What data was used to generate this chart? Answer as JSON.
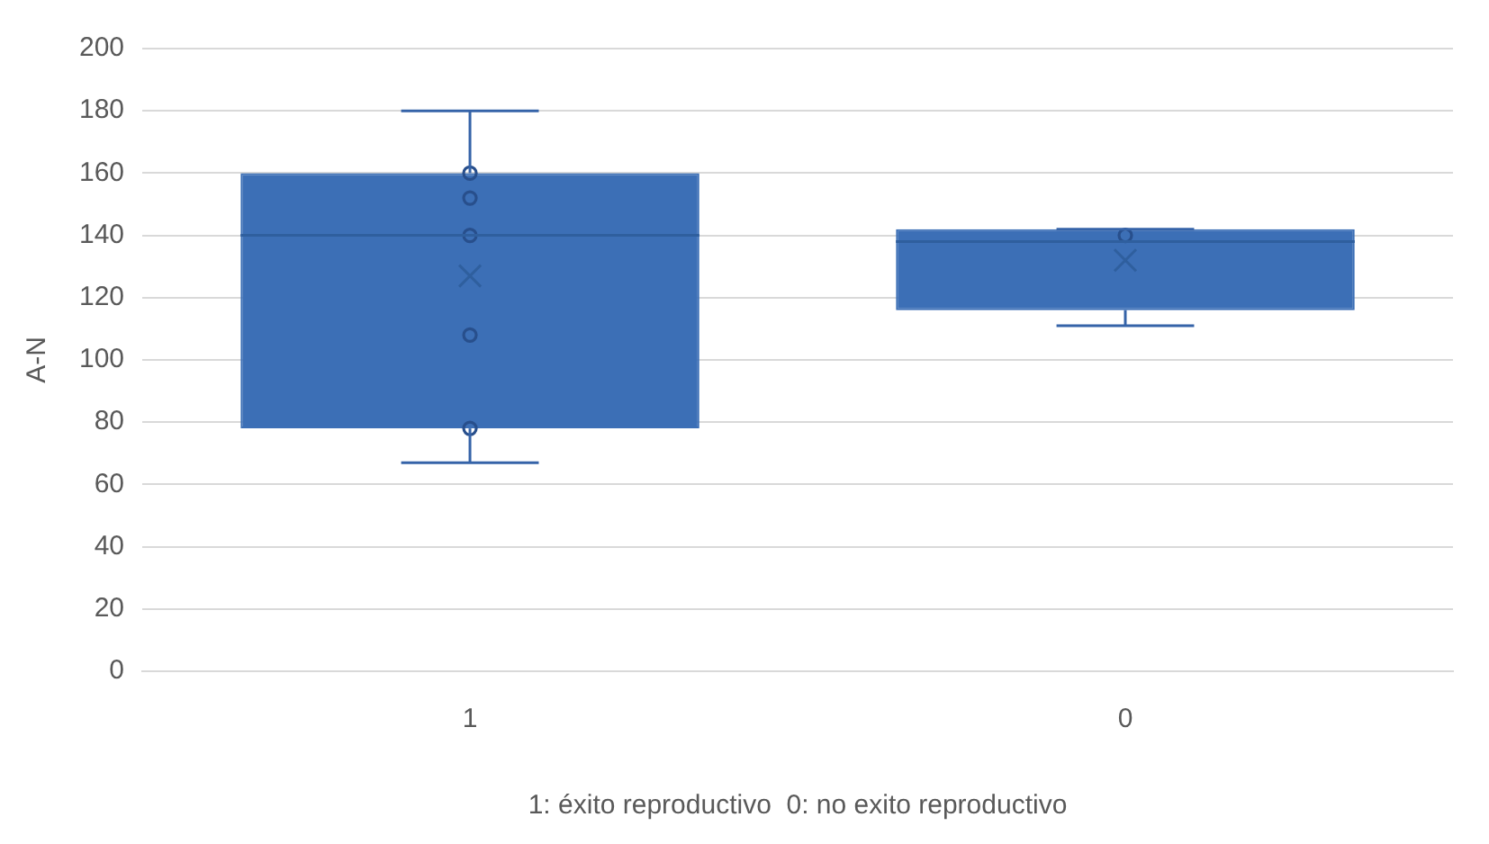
{
  "chart_data": {
    "type": "box",
    "xlabel": "1: éxito reproductivo  0: no exito reproductivo",
    "ylabel": "A-N",
    "categories": [
      "1",
      "0"
    ],
    "color": "#3c6fb6",
    "boxes": [
      {
        "low": 67,
        "q1": 78,
        "median": 140,
        "q3": 160,
        "high": 180,
        "mean": 127
      },
      {
        "low": 111,
        "q1": 116,
        "median": 138,
        "q3": 142,
        "high": 142,
        "mean": 132
      }
    ],
    "series": [
      {
        "type": "scatter",
        "color": "#284f8c",
        "marker": "circle",
        "x": [
          "1",
          "1",
          "1",
          "1",
          "1",
          "0"
        ],
        "values": [
          160,
          152,
          140,
          108,
          78,
          140
        ]
      }
    ],
    "ylim": [
      0,
      200
    ],
    "yticks": [
      0,
      20,
      40,
      60,
      80,
      100,
      120,
      140,
      160,
      180,
      200
    ],
    "grid": "y",
    "legend": false
  }
}
